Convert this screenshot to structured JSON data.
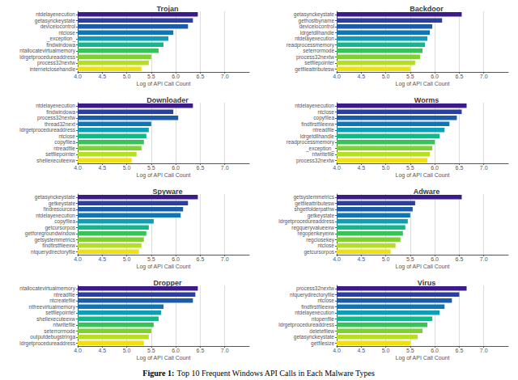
{
  "chart_data": [
    {
      "type": "bar",
      "orientation": "horizontal",
      "title": "Trojan",
      "xlabel": "Log of API Call Count",
      "categories": [
        "ntdelayexecution",
        "getasynckeystate",
        "deviceiocontrol",
        "ntclose",
        "_exception_",
        "findwindowa",
        "ntallocatevirtualmemory",
        "ldrgetprocedureaddress",
        "process32nextw",
        "internetclosehandle"
      ],
      "values": [
        6.45,
        6.35,
        6.25,
        5.95,
        5.85,
        5.75,
        5.65,
        5.5,
        5.45,
        5.3
      ],
      "colors": [
        "#3b1a8a",
        "#2b3fa0",
        "#1a5baa",
        "#1075b5",
        "#0d9eb8",
        "#12b88a",
        "#35c455",
        "#7dd130",
        "#b5e020",
        "#f0e010"
      ],
      "xlim": [
        4.0,
        7.5
      ],
      "xticks": [
        {
          "value": 4.0,
          "label": "4.0"
        },
        4.5,
        {
          "value": 5.0,
          "label": "5.0"
        },
        5.5,
        {
          "value": 6.0,
          "label": "6.0"
        },
        6.5,
        {
          "value": 7.0,
          "label": "7.0"
        }
      ],
      "grid": true
    },
    {
      "type": "bar",
      "orientation": "horizontal",
      "title": "Backdoor",
      "xlabel": "Log of API Call Count",
      "categories": [
        "getasynckeystate",
        "gethostbyname",
        "deviceiocontrol",
        "ldrgetdllhandle",
        "ntdelayexecution",
        "readprocessmemory",
        "seterrormode",
        "process32nextw",
        "setfilepointer",
        "getfileattributesw"
      ],
      "values": [
        6.55,
        6.15,
        5.95,
        5.9,
        5.85,
        5.8,
        5.75,
        5.7,
        5.6,
        5.5
      ],
      "colors": [
        "#3b1a8a",
        "#2b3fa0",
        "#1a5baa",
        "#1075b5",
        "#0d9eb8",
        "#12b88a",
        "#35c455",
        "#7dd130",
        "#b5e020",
        "#f0e010"
      ],
      "xlim": [
        4.0,
        7.5
      ],
      "xticks": [
        {
          "value": 4.0,
          "label": "4.0"
        },
        4.5,
        {
          "value": 5.0,
          "label": "5.0"
        },
        5.5,
        {
          "value": 6.0,
          "label": "6.0"
        },
        6.5,
        {
          "value": 7.0,
          "label": "7.0"
        }
      ],
      "grid": true
    },
    {
      "type": "bar",
      "orientation": "horizontal",
      "title": "Downloader",
      "xlabel": "Log of API Call Count",
      "categories": [
        "ntdelayexecution",
        "findwindowa",
        "process32nextw",
        "thread32next",
        "ldrgetprocedureaddress",
        "ntclose",
        "copyfileа",
        "ntreadfile",
        "setfilepointer",
        "shellexecuteexw"
      ],
      "values": [
        6.35,
        5.95,
        6.05,
        5.5,
        5.45,
        5.4,
        5.35,
        5.3,
        5.2,
        5.1
      ],
      "colors": [
        "#3b1a8a",
        "#2b3fa0",
        "#1a5baa",
        "#1075b5",
        "#0d9eb8",
        "#12b88a",
        "#35c455",
        "#7dd130",
        "#b5e020",
        "#f0e010"
      ],
      "xlim": [
        4.0,
        7.5
      ],
      "xticks": [
        {
          "value": 4.0,
          "label": "4.0"
        },
        4.5,
        {
          "value": 5.0,
          "label": "5.0"
        },
        5.5,
        {
          "value": 6.0,
          "label": "6.0"
        },
        6.5,
        {
          "value": 7.0,
          "label": "7.0"
        }
      ],
      "grid": true
    },
    {
      "type": "bar",
      "orientation": "horizontal",
      "title": "Worms",
      "xlabel": "Log of API Call Count",
      "categories": [
        "ntdelayexecution",
        "ntclose",
        "copyfileа",
        "findfirstfileexw",
        "ntreadfile",
        "ldrgetdllhandle",
        "readprocessmemory",
        "_exception_",
        "ntwritefile",
        "process32nextw"
      ],
      "values": [
        6.65,
        6.55,
        6.45,
        6.3,
        6.2,
        6.1,
        6.0,
        5.95,
        5.9,
        5.85
      ],
      "colors": [
        "#3b1a8a",
        "#2b3fa0",
        "#1a5baa",
        "#1075b5",
        "#0d9eb8",
        "#12b88a",
        "#35c455",
        "#7dd130",
        "#b5e020",
        "#f0e010"
      ],
      "xlim": [
        4.0,
        7.5
      ],
      "xticks": [
        {
          "value": 4.0,
          "label": "4.0"
        },
        4.5,
        {
          "value": 5.0,
          "label": "5.0"
        },
        5.5,
        {
          "value": 6.0,
          "label": "6.0"
        },
        6.5,
        {
          "value": 7.0,
          "label": "7.0"
        }
      ],
      "grid": true
    },
    {
      "type": "bar",
      "orientation": "horizontal",
      "title": "Spyware",
      "xlabel": "Log of API Call Count",
      "categories": [
        "getasynckeystate",
        "getkeystate",
        "findresourcea",
        "ntdelayexecution",
        "copyfileа",
        "getcursorpos",
        "getforegroundwindow",
        "getsystemmetrics",
        "findfirstfileexw",
        "ntquerydirectoryfile"
      ],
      "values": [
        6.45,
        6.25,
        6.15,
        6.1,
        5.55,
        5.45,
        5.4,
        5.35,
        5.3,
        5.25
      ],
      "colors": [
        "#3b1a8a",
        "#2b3fa0",
        "#1a5baa",
        "#1075b5",
        "#0d9eb8",
        "#12b88a",
        "#35c455",
        "#7dd130",
        "#b5e020",
        "#f0e010"
      ],
      "xlim": [
        4.0,
        7.5
      ],
      "xticks": [
        {
          "value": 4.0,
          "label": "4.0"
        },
        4.5,
        {
          "value": 5.0,
          "label": "5.0"
        },
        5.5,
        {
          "value": 6.0,
          "label": "6.0"
        },
        6.5,
        {
          "value": 7.0,
          "label": "7.0"
        }
      ],
      "grid": true
    },
    {
      "type": "bar",
      "orientation": "horizontal",
      "title": "Adware",
      "xlabel": "Log of API Call Count",
      "categories": [
        "getsystemmetrics",
        "getfileattributesw",
        "shgetfolderpathw",
        "getkeystate",
        "ldrgetprocedureaddress",
        "regqueryvalueexw",
        "regopenkeyexw",
        "regclosekey",
        "ntclose",
        "getcursorpos"
      ],
      "values": [
        6.55,
        5.6,
        5.55,
        5.5,
        5.45,
        5.4,
        5.35,
        5.3,
        5.2,
        5.1
      ],
      "colors": [
        "#3b1a8a",
        "#2b3fa0",
        "#1a5baa",
        "#1075b5",
        "#0d9eb8",
        "#12b88a",
        "#35c455",
        "#7dd130",
        "#b5e020",
        "#f0e010"
      ],
      "xlim": [
        4.0,
        7.5
      ],
      "xticks": [
        {
          "value": 4.0,
          "label": "4.0"
        },
        4.5,
        {
          "value": 5.0,
          "label": "5.0"
        },
        5.5,
        {
          "value": 6.0,
          "label": "6.0"
        },
        6.5,
        {
          "value": 7.0,
          "label": "7.0"
        }
      ],
      "grid": true
    },
    {
      "type": "bar",
      "orientation": "horizontal",
      "title": "Dropper",
      "xlabel": "Log of API Call Count",
      "categories": [
        "ntallocatevirtualmemory",
        "ntreadfile",
        "ntcreatefile",
        "ntfreevirtualmemory",
        "setfilepointer",
        "shellexecuteexw",
        "ntwritefile",
        "seterrormode",
        "outputdebugstringa",
        "ldrgetprocedureaddress"
      ],
      "values": [
        6.45,
        6.4,
        6.35,
        5.75,
        5.7,
        5.65,
        5.55,
        5.5,
        5.45,
        5.35
      ],
      "colors": [
        "#3b1a8a",
        "#2b3fa0",
        "#1a5baa",
        "#1075b5",
        "#0d9eb8",
        "#12b88a",
        "#35c455",
        "#7dd130",
        "#b5e020",
        "#f0e010"
      ],
      "xlim": [
        4.0,
        7.5
      ],
      "xticks": [
        {
          "value": 4.0,
          "label": "4.0"
        },
        4.5,
        {
          "value": 5.0,
          "label": "5.0"
        },
        5.5,
        {
          "value": 6.0,
          "label": "6.0"
        },
        6.5,
        {
          "value": 7.0,
          "label": "7.0"
        }
      ],
      "grid": true
    },
    {
      "type": "bar",
      "orientation": "horizontal",
      "title": "Virus",
      "xlabel": "Log of API Call Count",
      "categories": [
        "process32nextw",
        "ntquerydirectoryfile",
        "ntclose",
        "findfirstfileexw",
        "ntdelayexecution",
        "ntopenfile",
        "ldrgetprocedureaddress",
        "deletefilew",
        "getasynckeystate",
        "getfilesize"
      ],
      "values": [
        6.65,
        6.5,
        6.35,
        6.2,
        6.1,
        5.95,
        5.85,
        5.75,
        5.65,
        5.5
      ],
      "colors": [
        "#3b1a8a",
        "#2b3fa0",
        "#1a5baa",
        "#1075b5",
        "#0d9eb8",
        "#12b88a",
        "#35c455",
        "#7dd130",
        "#b5e020",
        "#f0e010"
      ],
      "xlim": [
        4.0,
        7.5
      ],
      "xticks": [
        {
          "value": 4.0,
          "label": "4.0"
        },
        4.5,
        {
          "value": 5.0,
          "label": "5.0"
        },
        5.5,
        {
          "value": 6.0,
          "label": "6.0"
        },
        6.5,
        {
          "value": 7.0,
          "label": "7.0"
        }
      ],
      "grid": true
    }
  ],
  "caption": [
    "Figure 1:",
    "Top 10 Frequent Windows API Calls in Each Malware Types"
  ]
}
